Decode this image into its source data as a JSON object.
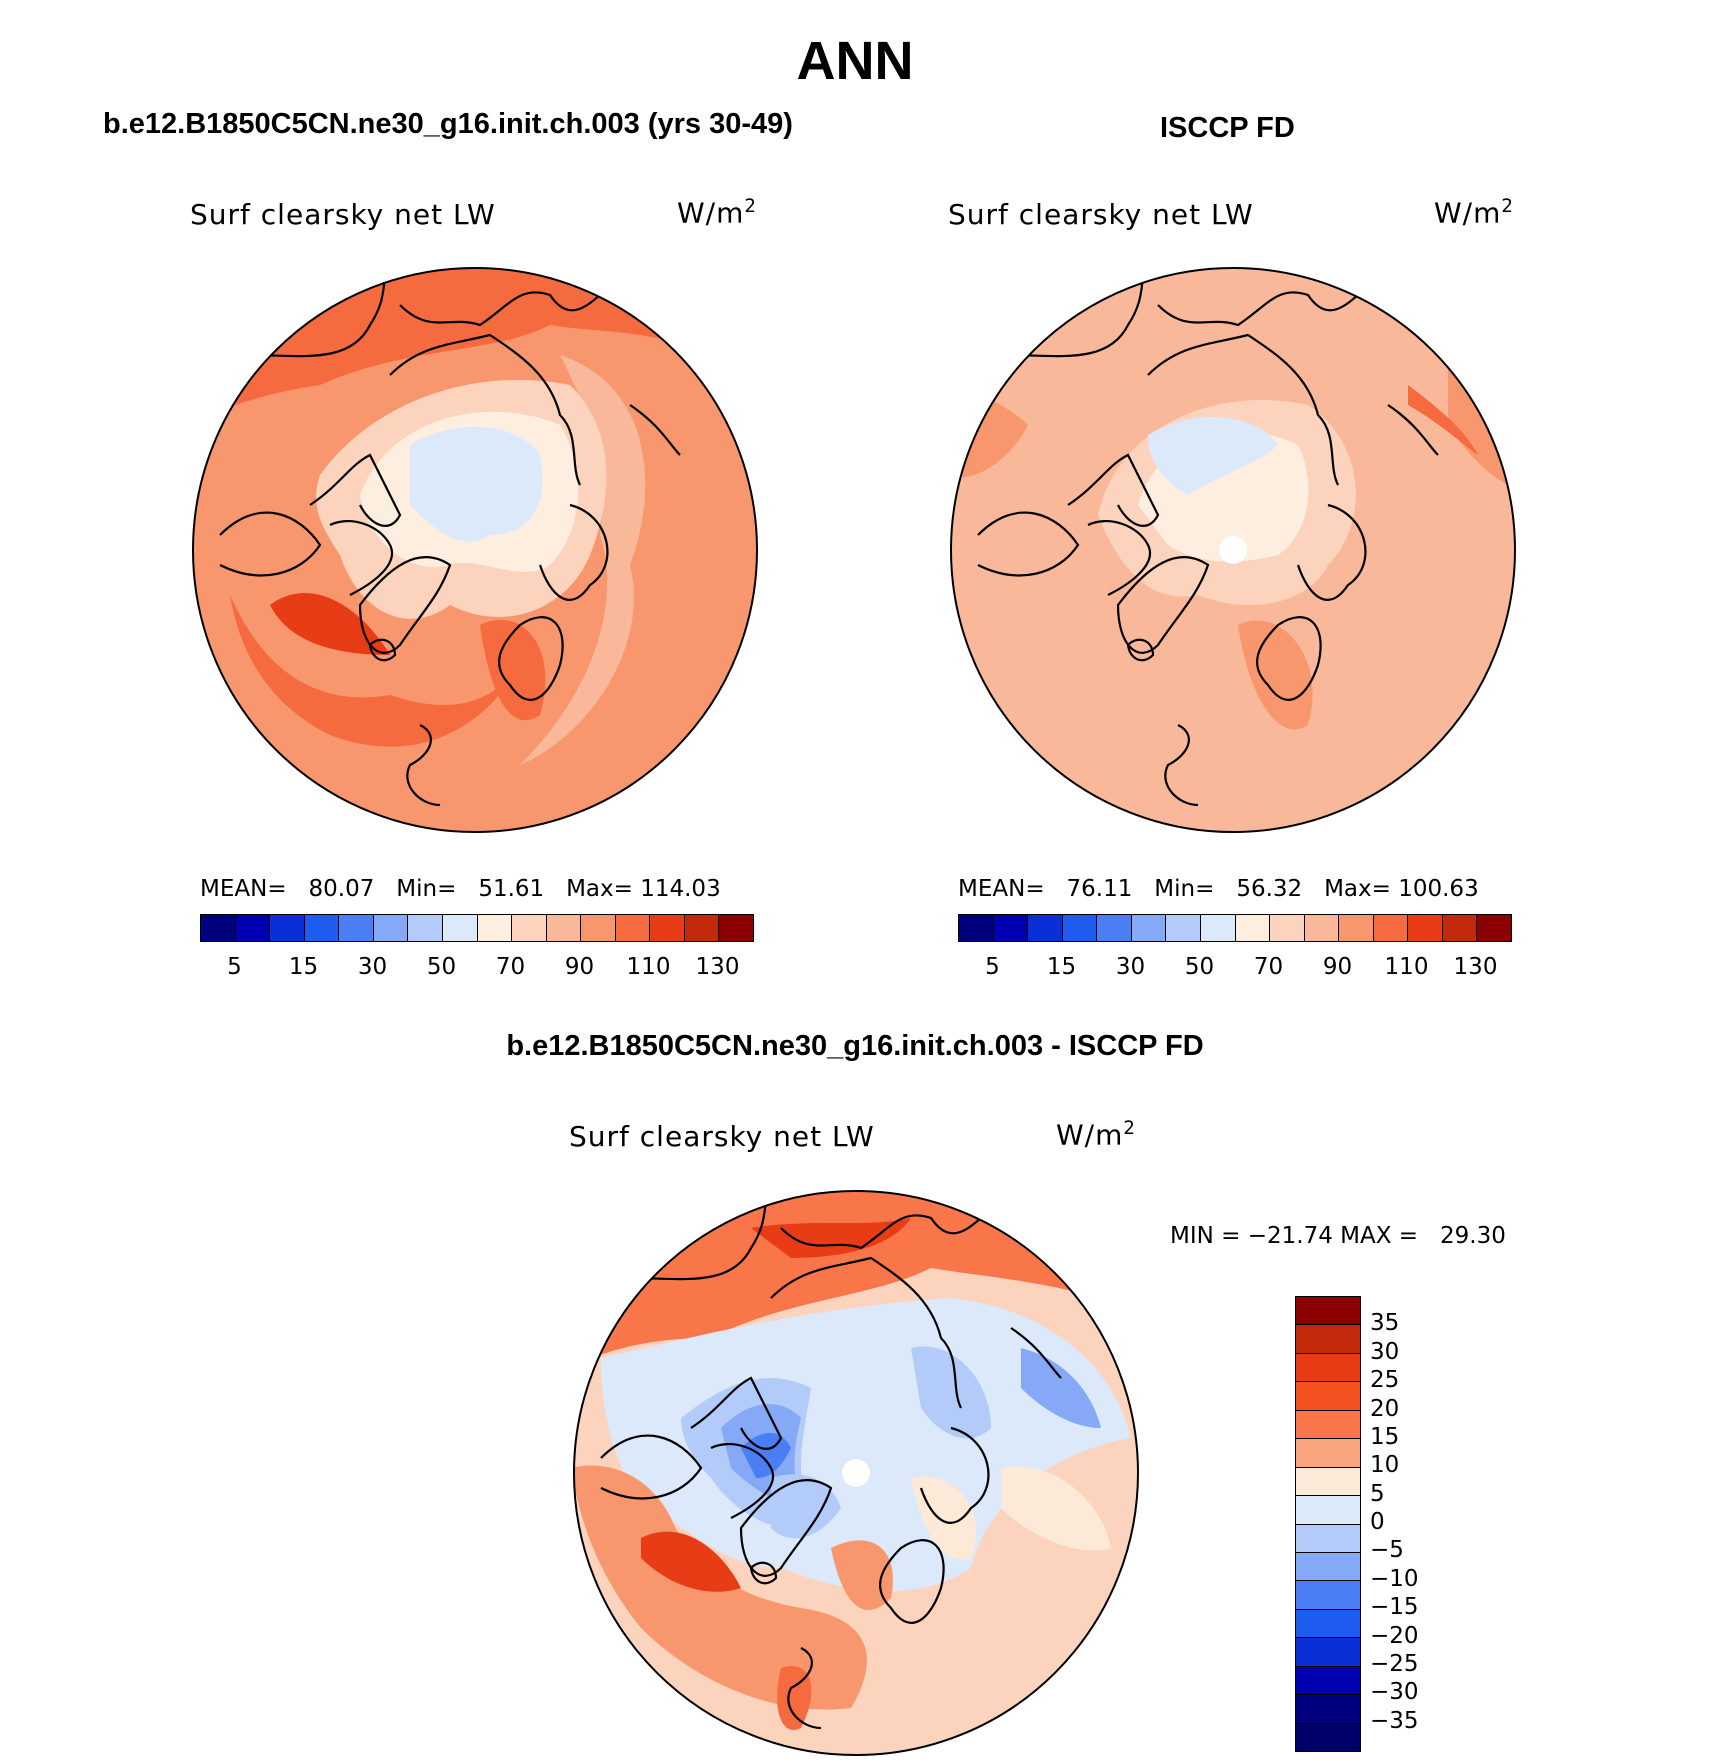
{
  "title": "ANN",
  "panels": [
    {
      "id": "model",
      "heading": "b.e12.B1850C5CN.ne30_g16.init.ch.003 (yrs 30-49)",
      "variable": "Surf clearsky net LW",
      "units": "W/m",
      "units_sup": "2",
      "stats": "MEAN=   80.07   Min=   51.61   Max= 114.03"
    },
    {
      "id": "obs",
      "heading": "ISCCP FD",
      "variable": "Surf clearsky net LW",
      "units": "W/m",
      "units_sup": "2",
      "stats": "MEAN=   76.11   Min=   56.32   Max= 100.63"
    }
  ],
  "difference": {
    "heading": "b.e12.B1850C5CN.ne30_g16.init.ch.003 - ISCCP FD",
    "variable": "Surf clearsky net LW",
    "units": "W/m",
    "units_sup": "2",
    "stats": "MIN = −21.74 MAX =   29.30"
  },
  "colorbar_abs": {
    "colors": [
      "#00007f",
      "#0000b3",
      "#0a2fd6",
      "#1f5cf0",
      "#4a7ef5",
      "#85a8f7",
      "#b3cbf9",
      "#dbe9fb",
      "#fdeee0",
      "#fcd3bd",
      "#fab89a",
      "#f8976d",
      "#f56a3e",
      "#e83c16",
      "#c22a0c",
      "#8b0000"
    ],
    "tick_labels": [
      "5",
      "15",
      "30",
      "50",
      "70",
      "90",
      "110",
      "130"
    ]
  },
  "colorbar_diff": {
    "colors_top_to_bottom": [
      "#8b0000",
      "#c22a0c",
      "#e83c16",
      "#f5501f",
      "#f8764a",
      "#f8a47d",
      "#fde9d8",
      "#dbe9fb",
      "#b3cbf9",
      "#85a8f7",
      "#4a7ef5",
      "#1f5cf0",
      "#0a2fd6",
      "#0000b3",
      "#00007f",
      "#00006a"
    ],
    "tick_labels": [
      "35",
      "30",
      "25",
      "20",
      "15",
      "10",
      "5",
      "0",
      "−5",
      "−10",
      "−15",
      "−20",
      "−25",
      "−30",
      "−35"
    ]
  }
}
